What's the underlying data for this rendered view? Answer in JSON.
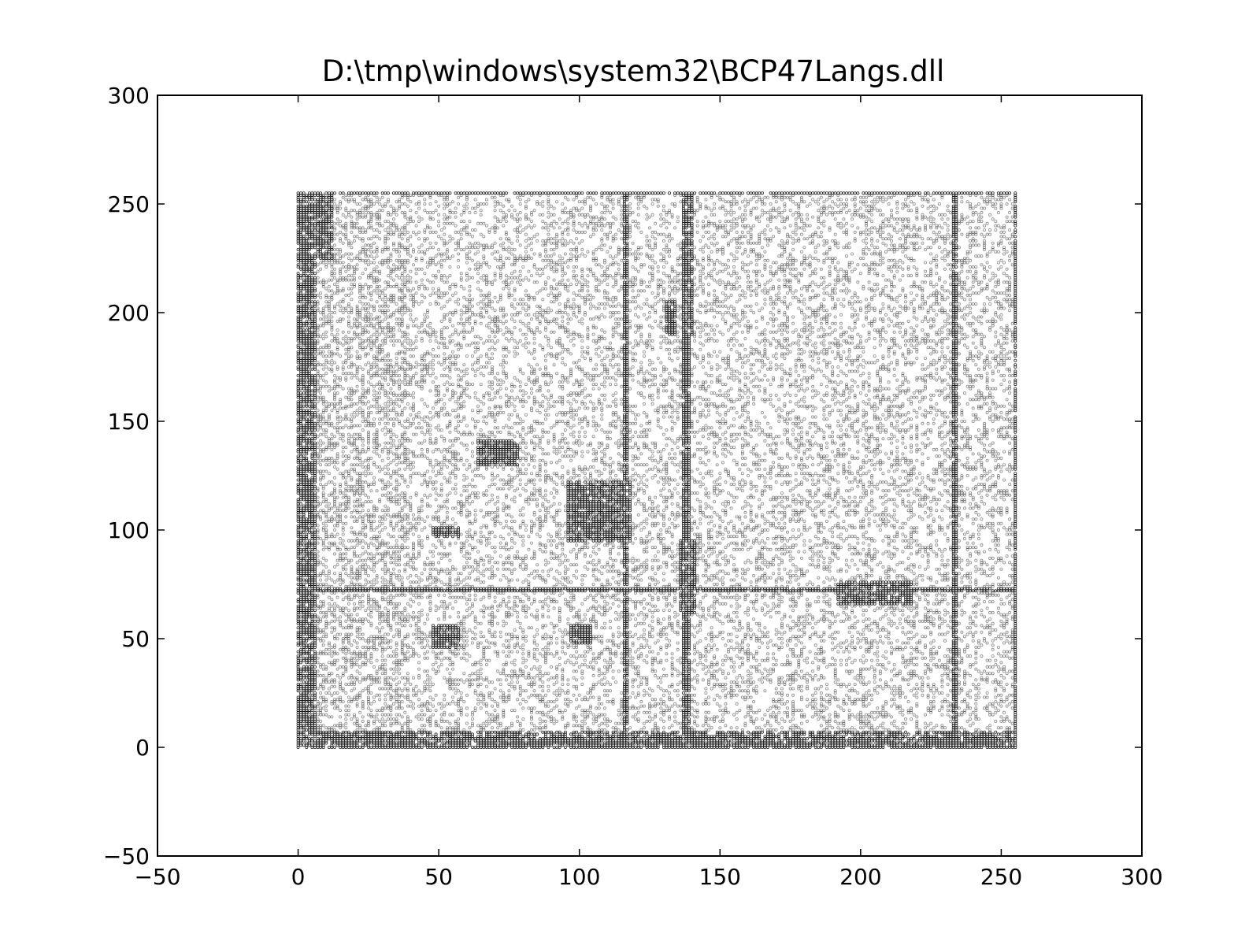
{
  "chart_data": {
    "type": "scatter",
    "title": "D:\\tmp\\windows\\system32\\BCP47Langs.dll",
    "xlabel": "",
    "ylabel": "",
    "xlim": [
      -50,
      300
    ],
    "ylim": [
      -50,
      300
    ],
    "grid": false,
    "legend": null,
    "x_ticks": [
      "−50",
      "0",
      "50",
      "100",
      "150",
      "200",
      "250",
      "300"
    ],
    "x_tick_values": [
      -50,
      0,
      50,
      100,
      150,
      200,
      250,
      300
    ],
    "y_ticks": [
      "−50",
      "0",
      "50",
      "100",
      "150",
      "200",
      "250",
      "300"
    ],
    "y_tick_values": [
      -50,
      0,
      50,
      100,
      150,
      200,
      250,
      300
    ],
    "marker_color": "#000000",
    "data_extent": {
      "x": [
        0,
        255
      ],
      "y": [
        0,
        255
      ]
    },
    "background_density": 0.26,
    "dense_lines": {
      "vertical": [
        0,
        1,
        2,
        116,
        117,
        137,
        138,
        139,
        233,
        234,
        255
      ],
      "horizontal": [
        0,
        1,
        2,
        3,
        4,
        72,
        73,
        255
      ]
    },
    "dense_blocks": [
      {
        "x": [
          48,
          57
        ],
        "y": [
          46,
          56
        ]
      },
      {
        "x": [
          97,
          104
        ],
        "y": [
          48,
          56
        ]
      },
      {
        "x": [
          96,
          118
        ],
        "y": [
          95,
          122
        ]
      },
      {
        "x": [
          48,
          57
        ],
        "y": [
          97,
          101
        ]
      },
      {
        "x": [
          64,
          78
        ],
        "y": [
          130,
          141
        ]
      },
      {
        "x": [
          136,
          141
        ],
        "y": [
          62,
          95
        ]
      },
      {
        "x": [
          138,
          140
        ],
        "y": [
          190,
          255
        ]
      },
      {
        "x": [
          131,
          134
        ],
        "y": [
          190,
          205
        ]
      },
      {
        "x": [
          192,
          218
        ],
        "y": [
          66,
          76
        ]
      },
      {
        "x": [
          0,
          12
        ],
        "y": [
          225,
          255
        ]
      },
      {
        "x": [
          0,
          6
        ],
        "y": [
          0,
          255
        ]
      }
    ]
  }
}
